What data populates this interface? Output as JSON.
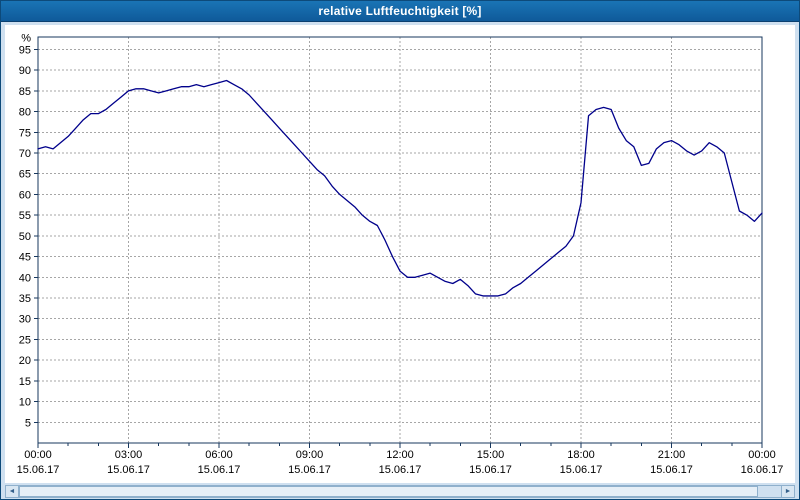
{
  "title": "relative Luftfeuchtigkeit [%]",
  "icons": {
    "scroll_left": "◄",
    "scroll_right": "►"
  },
  "colors": {
    "titlebar_bg": "#1365a4",
    "titlebar_text": "#ffffff",
    "page_bg": "#cfe0f0",
    "panel_bg": "#ffffff",
    "grid": "#a6a6a6",
    "frame": "#17375e",
    "line": "#00008b",
    "tick_text": "#000000"
  },
  "chart_data": {
    "type": "line",
    "title": "relative Luftfeuchtigkeit [%]",
    "xlabel": "",
    "ylabel": "%",
    "ylim": [
      0,
      98
    ],
    "grid": true,
    "legend": "none",
    "yticks": [
      5,
      10,
      15,
      20,
      25,
      30,
      35,
      40,
      45,
      50,
      55,
      60,
      65,
      70,
      75,
      80,
      85,
      90,
      95
    ],
    "xticks": [
      {
        "hour": 0,
        "time": "00:00",
        "date": "15.06.17"
      },
      {
        "hour": 3,
        "time": "03:00",
        "date": "15.06.17"
      },
      {
        "hour": 6,
        "time": "06:00",
        "date": "15.06.17"
      },
      {
        "hour": 9,
        "time": "09:00",
        "date": "15.06.17"
      },
      {
        "hour": 12,
        "time": "12:00",
        "date": "15.06.17"
      },
      {
        "hour": 15,
        "time": "15:00",
        "date": "15.06.17"
      },
      {
        "hour": 18,
        "time": "18:00",
        "date": "15.06.17"
      },
      {
        "hour": 21,
        "time": "21:00",
        "date": "15.06.17"
      },
      {
        "hour": 24,
        "time": "00:00",
        "date": "16.06.17"
      }
    ],
    "x_start_hour": 0,
    "x_end_hour": 24,
    "x_step_hours": 0.25,
    "series": [
      {
        "name": "relative Luftfeuchtigkeit",
        "values": [
          71,
          71.5,
          71,
          72.5,
          74,
          76,
          78,
          79.5,
          79.5,
          80.5,
          82,
          83.5,
          85,
          85.5,
          85.5,
          85,
          84.5,
          85,
          85.5,
          86,
          86,
          86.5,
          86,
          86.5,
          87,
          87.5,
          86.5,
          85.5,
          84,
          82,
          80,
          78,
          76,
          74,
          72,
          70,
          68,
          66,
          64.5,
          62,
          60,
          58.5,
          57,
          55,
          53.5,
          52.5,
          49,
          45,
          41.5,
          40,
          40,
          40.5,
          41,
          40,
          39,
          38.5,
          39.5,
          38,
          36,
          35.5,
          35.5,
          35.5,
          36,
          37.5,
          38.5,
          40,
          41.5,
          43,
          44.5,
          46,
          47.5,
          50,
          58,
          79,
          80.5,
          81,
          80.5,
          76,
          73,
          71.5,
          67,
          67.5,
          71,
          72.5,
          73,
          72,
          70.5,
          69.5,
          70.5,
          72.5,
          71.5,
          70,
          63,
          56,
          55,
          53.5,
          55.5
        ]
      }
    ]
  }
}
